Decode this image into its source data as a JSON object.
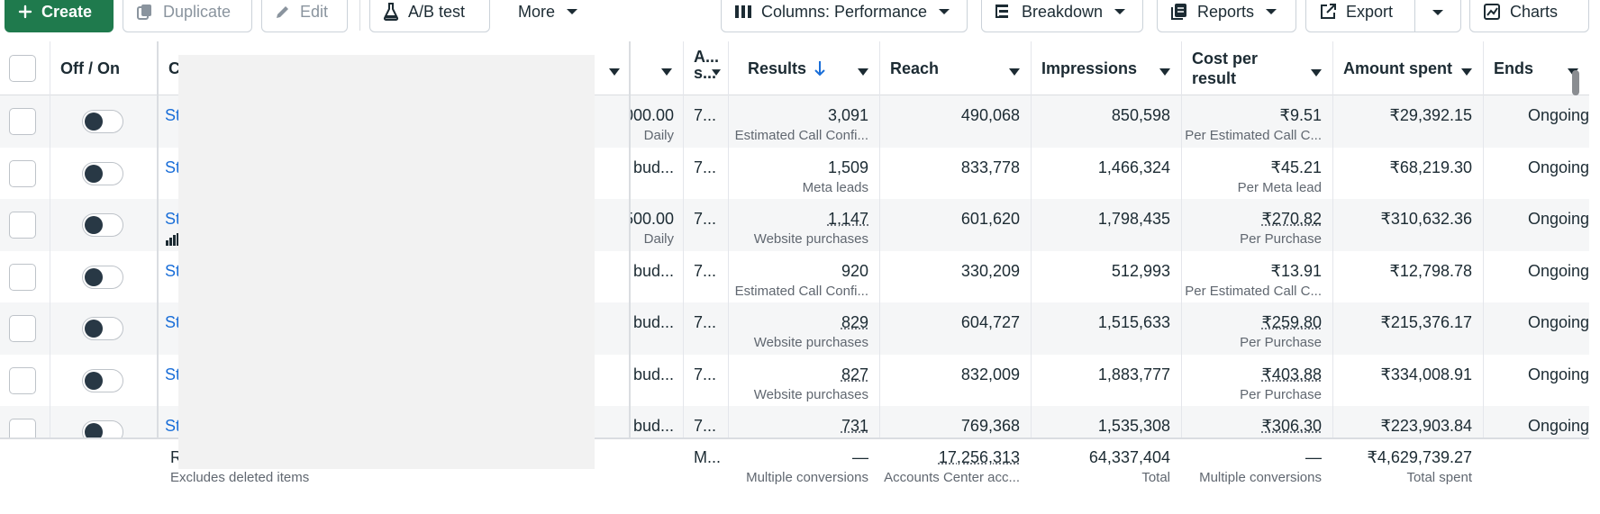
{
  "toolbar": {
    "create": "Create",
    "duplicate": "Duplicate",
    "edit": "Edit",
    "ab_test": "A/B test",
    "more": "More",
    "columns": "Columns: Performance",
    "breakdown": "Breakdown",
    "reports": "Reports",
    "export": "Export",
    "charts": "Charts"
  },
  "headers": {
    "off_on": "Off / On",
    "campaign": "C",
    "attribution": "A...\ns...",
    "results": "Results",
    "reach": "Reach",
    "impressions": "Impressions",
    "cost_per_result": "Cost per\nresult",
    "amount_spent": "Amount spent",
    "ends": "Ends"
  },
  "rows": [
    {
      "name": "St",
      "budget": "000.00",
      "budget_sub": "Daily",
      "attr": "7...",
      "results": "3,091",
      "results_sub": "Estimated Call Confi...",
      "reach": "490,068",
      "impressions": "850,598",
      "cpr": "₹9.51",
      "cpr_sub": "Per Estimated Call C...",
      "spent": "₹29,392.15",
      "ends": "Ongoing"
    },
    {
      "name": "St",
      "budget": "bud...",
      "budget_sub": "",
      "attr": "7...",
      "results": "1,509",
      "results_sub": "Meta leads",
      "reach": "833,778",
      "impressions": "1,466,324",
      "cpr": "₹45.21",
      "cpr_sub": "Per Meta lead",
      "spent": "₹68,219.30",
      "ends": "Ongoing"
    },
    {
      "name": "St",
      "budget": "500.00",
      "budget_sub": "Daily",
      "attr": "7...",
      "results": "1,147",
      "results_sub": "Website purchases",
      "reach": "601,620",
      "impressions": "1,798,435",
      "cpr": "₹270.82",
      "cpr_sub": "Per Purchase",
      "spent": "₹310,632.36",
      "ends": "Ongoing"
    },
    {
      "name": "St",
      "budget": "bud...",
      "budget_sub": "",
      "attr": "7...",
      "results": "920",
      "results_sub": "Estimated Call Confi...",
      "reach": "330,209",
      "impressions": "512,993",
      "cpr": "₹13.91",
      "cpr_sub": "Per Estimated Call C...",
      "spent": "₹12,798.78",
      "ends": "Ongoing"
    },
    {
      "name": "St",
      "budget": "bud...",
      "budget_sub": "",
      "attr": "7...",
      "results": "829",
      "results_sub": "Website purchases",
      "reach": "604,727",
      "impressions": "1,515,633",
      "cpr": "₹259.80",
      "cpr_sub": "Per Purchase",
      "spent": "₹215,376.17",
      "ends": "Ongoing"
    },
    {
      "name": "St",
      "budget": "bud...",
      "budget_sub": "",
      "attr": "7...",
      "results": "827",
      "results_sub": "Website purchases",
      "reach": "832,009",
      "impressions": "1,883,777",
      "cpr": "₹403.88",
      "cpr_sub": "Per Purchase",
      "spent": "₹334,008.91",
      "ends": "Ongoing"
    },
    {
      "name": "St",
      "budget": "bud...",
      "budget_sub": "",
      "attr": "7...",
      "results": "731",
      "results_sub": "",
      "reach": "769,368",
      "impressions": "1,535,308",
      "cpr": "₹306.30",
      "cpr_sub": "",
      "spent": "₹223,903.84",
      "ends": "Ongoing"
    }
  ],
  "footer": {
    "name": "R",
    "name_sub": "Excludes deleted items",
    "attr": "M...",
    "results": "—",
    "results_sub": "Multiple conversions",
    "reach": "17,256,313",
    "reach_sub": "Accounts Center acc...",
    "impressions": "64,337,404",
    "impressions_sub": "Total",
    "cpr": "—",
    "cpr_sub": "Multiple conversions",
    "spent": "₹4,629,739.27",
    "spent_sub": "Total spent"
  },
  "colors": {
    "primary": "#1f7a4d",
    "link": "#1a6ed8",
    "sort_arrow": "#1a6ed8"
  }
}
